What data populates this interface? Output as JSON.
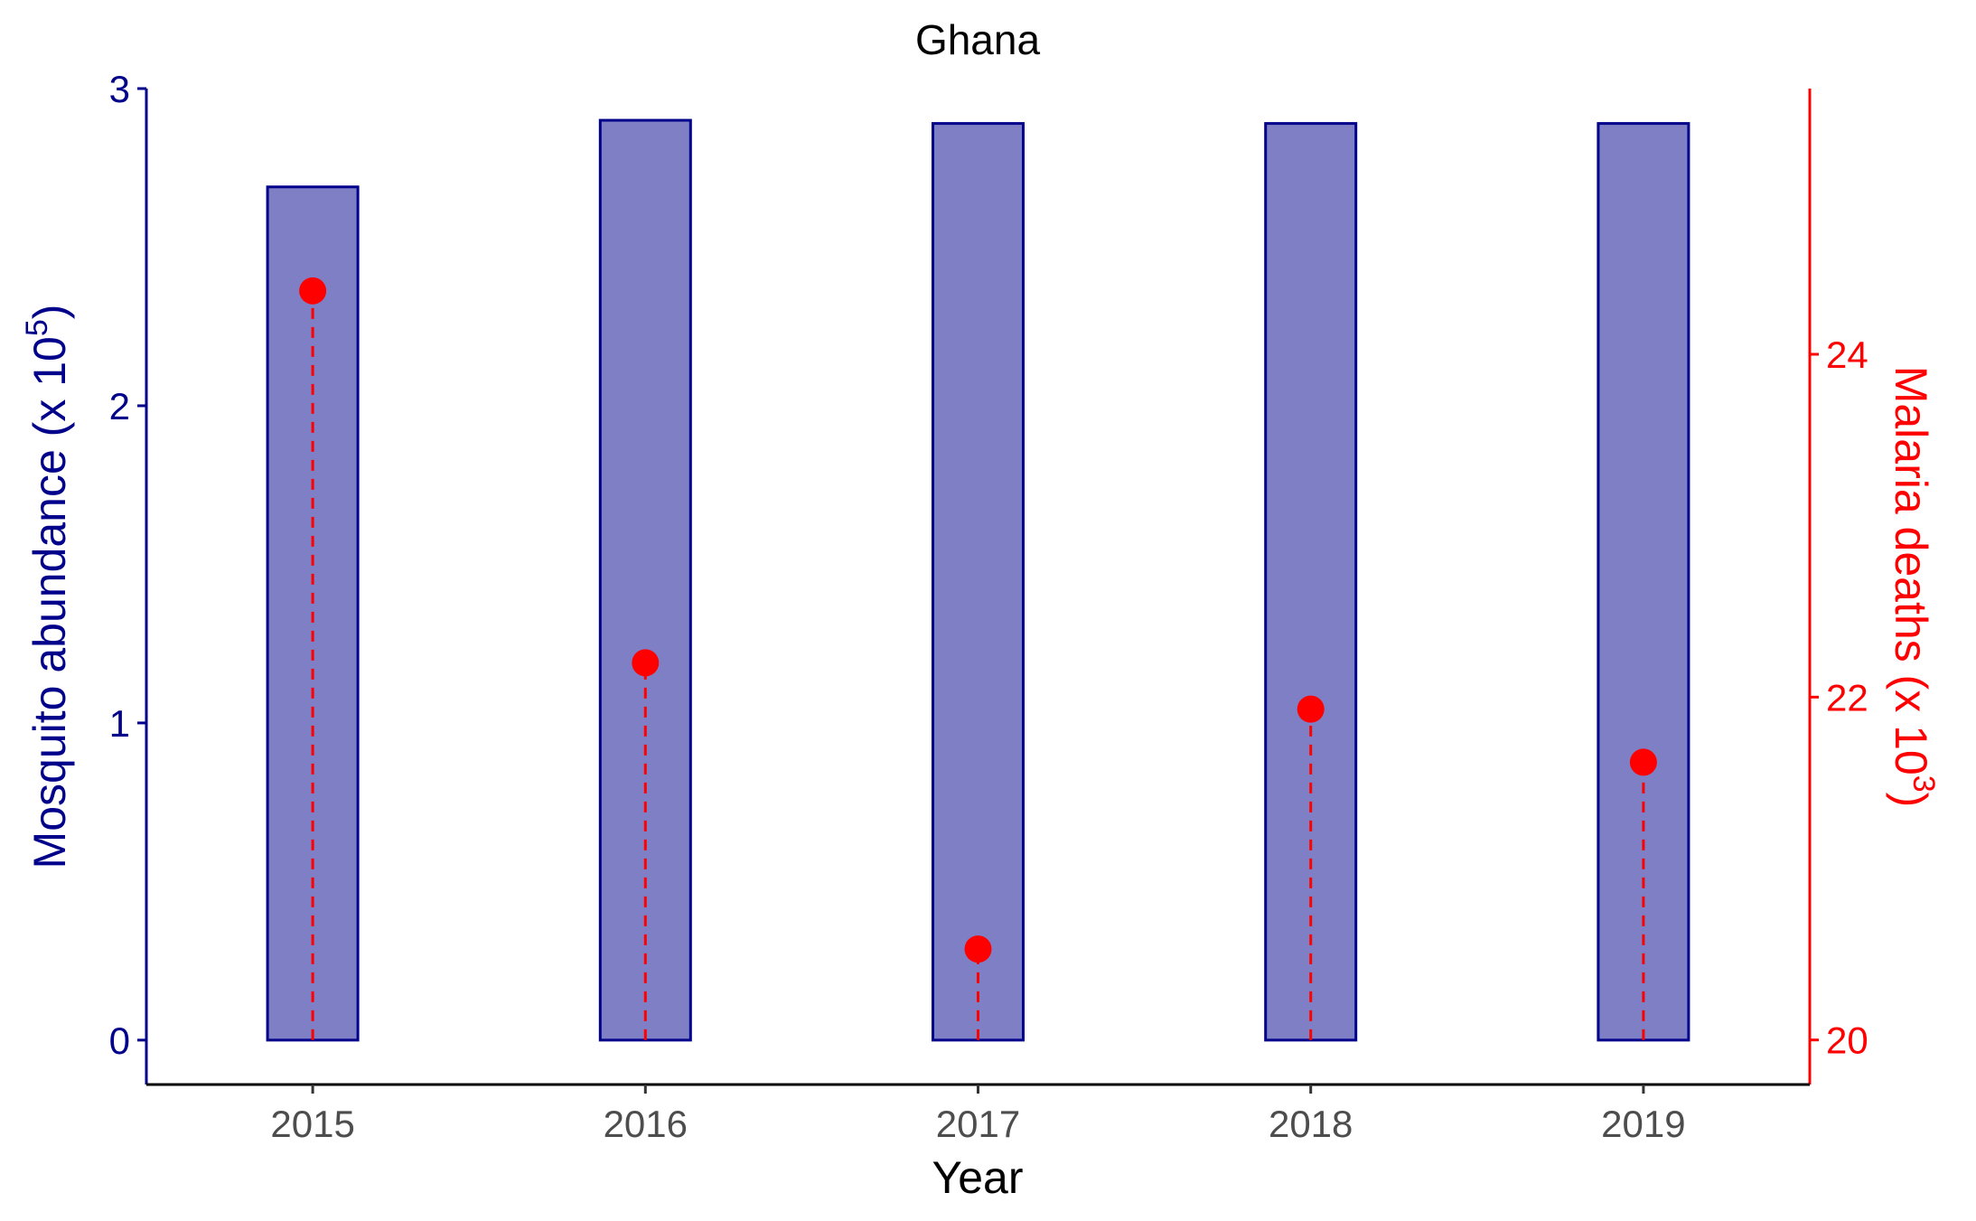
{
  "chart_data": {
    "type": "bar",
    "title": "Ghana",
    "xlabel": "Year",
    "categories": [
      "2015",
      "2016",
      "2017",
      "2018",
      "2019"
    ],
    "left_axis": {
      "label_prefix": "Mosquito abundance (x 10",
      "label_exponent": "5",
      "label_suffix": ")",
      "ylim": [
        -0.14,
        3.0
      ],
      "ticks": [
        0,
        1,
        2,
        3
      ],
      "tick_labels": [
        "0",
        "1",
        "2",
        "3"
      ],
      "color": "#00008B"
    },
    "right_axis": {
      "label_prefix": "Malaria deaths (x 10",
      "label_exponent": "3",
      "label_suffix": ")",
      "ylim": [
        19.74,
        25.55
      ],
      "ticks": [
        20,
        22,
        24
      ],
      "tick_labels": [
        "20",
        "22",
        "24"
      ],
      "color": "#FF0000"
    },
    "series": [
      {
        "kind": "bar",
        "axis": "left",
        "values": [
          2.69,
          2.9,
          2.89,
          2.89,
          2.89
        ],
        "fill": "#7F7FC5",
        "stroke": "#00008B"
      },
      {
        "kind": "lollipop",
        "axis": "right",
        "values": [
          24.37,
          22.2,
          20.53,
          21.93,
          21.62
        ],
        "color": "#FF0000",
        "line_style": "dashed"
      }
    ],
    "grid": false
  }
}
